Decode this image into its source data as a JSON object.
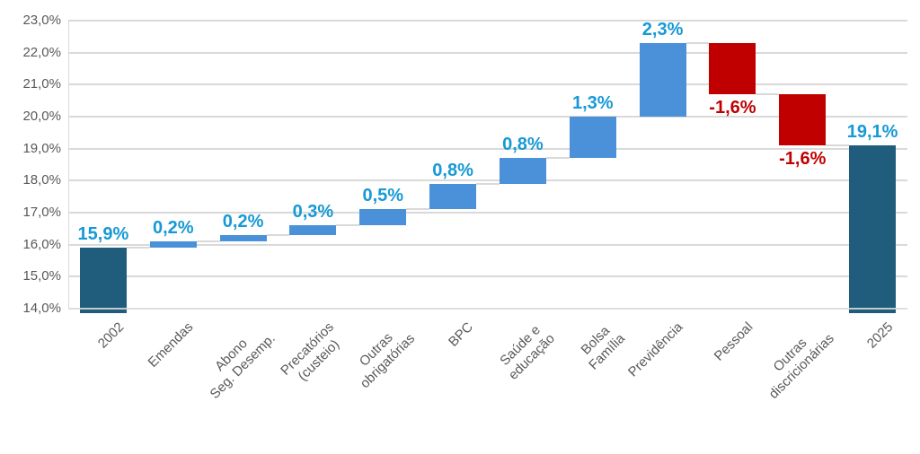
{
  "chart_data": {
    "type": "bar",
    "subtype": "waterfall",
    "title": "",
    "categories": [
      "2002",
      "Emendas",
      "Abono\nSeg. Desemp.",
      "Precatórios\n(custeio)",
      "Outras\nobrigatórias",
      "BPC",
      "Saúde e\neducação",
      "Bolsa\nFamília",
      "Previdência",
      "Pessoal",
      "Outras\ndiscricionárias",
      "2025"
    ],
    "values": [
      15.9,
      0.2,
      0.2,
      0.3,
      0.5,
      0.8,
      0.8,
      1.3,
      2.3,
      -1.6,
      -1.6,
      19.1
    ],
    "bar_kinds": [
      "total",
      "increase",
      "increase",
      "increase",
      "increase",
      "increase",
      "increase",
      "increase",
      "increase",
      "decrease",
      "decrease",
      "total"
    ],
    "bar_labels": [
      "15,9%",
      "0,2%",
      "0,2%",
      "0,3%",
      "0,5%",
      "0,8%",
      "0,8%",
      "1,3%",
      "2,3%",
      "-1,6%",
      "-1,6%",
      "19,1%"
    ],
    "y_tick_labels": [
      "23,0%",
      "22,0%",
      "21,0%",
      "20,0%",
      "19,0%",
      "18,0%",
      "17,0%",
      "16,0%",
      "15,0%",
      "14,0%"
    ],
    "y_tick_values": [
      23,
      22,
      21,
      20,
      19,
      18,
      17,
      16,
      15,
      14
    ],
    "ylim": [
      14.0,
      23.0
    ],
    "grid": true,
    "legend": "none",
    "colors": {
      "total_bar": "#205d7c",
      "increase_bar": "#4a91da",
      "decrease_bar": "#c00000",
      "label_positive": "#1699d6",
      "label_negative": "#c00000",
      "axis_text": "#595959",
      "gridline": "#d9d9d9"
    }
  }
}
